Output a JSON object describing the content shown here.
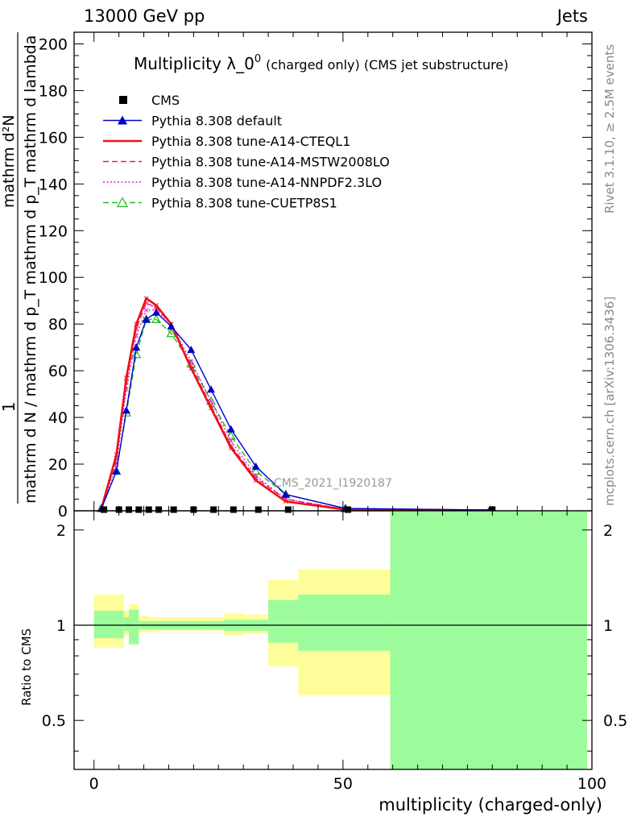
{
  "header": {
    "energy": "13000 GeV pp",
    "category": "Jets",
    "side_rivet": "Rivet 3.1.10, ≥ 2.5M events",
    "side_mcplots": "mcplots.cern.ch [arXiv:1306.3436]",
    "watermark": "CMS_2021_I1920187"
  },
  "chart_data": [
    {
      "type": "line",
      "title_main": "Multiplicity λ_0",
      "title_sup": "0",
      "title_paren": "(charged only) (CMS jet substructure)",
      "xlabel": "multiplicity (charged-only)",
      "ylabel_numerator": "1",
      "ylabel_denominator": "mathrm d N / mathrm d p_T mathrm d p_T mathrm d lambda",
      "ylabel_top": "mathrm d²N",
      "xlim": [
        -4,
        100
      ],
      "ylim": [
        0,
        205
      ],
      "yticks": [
        0,
        20,
        40,
        60,
        80,
        100,
        120,
        140,
        160,
        180,
        200
      ],
      "xticks": [
        0,
        50,
        100
      ],
      "legend_position": "top-left",
      "series": [
        {
          "name": "CMS",
          "style": "data",
          "color": "#000000",
          "x": [
            2,
            5,
            7,
            9,
            11,
            13,
            16,
            20,
            24,
            28,
            33,
            39,
            51,
            80
          ],
          "y": [
            0.5,
            0.5,
            0.5,
            0.5,
            0.5,
            0.5,
            0.5,
            0.5,
            0.5,
            0.5,
            0.5,
            0.5,
            0.5,
            0.5
          ]
        },
        {
          "name": "Pythia 8.308 default",
          "style": "solid-triangle",
          "color": "#0000cc",
          "x": [
            1.5,
            4.5,
            6.5,
            8.5,
            10.5,
            12.5,
            15.5,
            19.5,
            23.5,
            27.5,
            32.5,
            38.5,
            50.5,
            79.5
          ],
          "y": [
            1,
            17,
            43,
            70,
            82,
            85,
            79,
            69,
            52,
            35,
            19,
            7,
            1,
            0.3
          ]
        },
        {
          "name": "Pythia 8.308 tune-A14-CTEQL1",
          "style": "solid-thick",
          "color": "#ee1111",
          "x": [
            1.5,
            4.5,
            6.5,
            8.5,
            10.5,
            12.5,
            15.5,
            19.5,
            23.5,
            27.5,
            32.5,
            38.5,
            50.5,
            79.5
          ],
          "y": [
            1,
            24,
            57,
            80,
            91,
            88,
            80,
            61,
            44,
            27,
            13,
            4,
            0.5,
            0.2
          ]
        },
        {
          "name": "Pythia 8.308 tune-A14-MSTW2008LO",
          "style": "dashed",
          "color": "#ee1188",
          "x": [
            1.5,
            4.5,
            6.5,
            8.5,
            10.5,
            12.5,
            15.5,
            19.5,
            23.5,
            27.5,
            32.5,
            38.5,
            50.5,
            79.5
          ],
          "y": [
            1,
            22,
            55,
            78,
            89,
            87,
            80,
            62,
            45,
            28,
            14,
            5,
            0.6,
            0.2
          ]
        },
        {
          "name": "Pythia 8.308 tune-A14-NNPDF2.3LO",
          "style": "dotted",
          "color": "#dd22cc",
          "x": [
            1.5,
            4.5,
            6.5,
            8.5,
            10.5,
            12.5,
            15.5,
            19.5,
            23.5,
            27.5,
            32.5,
            38.5,
            50.5,
            79.5
          ],
          "y": [
            1,
            20,
            52,
            75,
            86,
            86,
            80,
            64,
            47,
            30,
            15,
            5,
            0.7,
            0.2
          ]
        },
        {
          "name": "Pythia 8.308 tune-CUETP8S1",
          "style": "dashed-open-triangle",
          "color": "#22bb22",
          "x": [
            1.5,
            4.5,
            6.5,
            8.5,
            10.5,
            12.5,
            15.5,
            19.5,
            23.5,
            27.5,
            32.5,
            38.5,
            50.5,
            79.5
          ],
          "y": [
            1,
            17,
            42,
            67,
            82,
            82,
            76,
            63,
            47,
            32,
            17,
            7,
            1,
            0.3
          ]
        }
      ]
    },
    {
      "type": "area",
      "ylabel": "Ratio to CMS",
      "xlim": [
        -4,
        100
      ],
      "ylim": [
        0.35,
        2.3
      ],
      "yticks": [
        0.5,
        1,
        2
      ],
      "ytick_labels": [
        "0.5",
        "1",
        "2"
      ],
      "reference_line": 1,
      "bands": {
        "edges": [
          0,
          4,
          6,
          7,
          9,
          11,
          13,
          16,
          18,
          22,
          26,
          30,
          35,
          41,
          59.5,
          99
        ],
        "inner_color": "#9cfc9c",
        "outer_color": "#fdfd99",
        "inner_low": [
          0.91,
          0.91,
          0.96,
          0.87,
          0.97,
          0.97,
          0.97,
          0.97,
          0.97,
          0.97,
          0.96,
          0.96,
          0.88,
          0.83,
          0.0
        ],
        "inner_high": [
          1.11,
          1.11,
          1.06,
          1.12,
          1.03,
          1.03,
          1.03,
          1.03,
          1.03,
          1.03,
          1.04,
          1.04,
          1.2,
          1.25,
          3.0
        ],
        "outer_low": [
          0.85,
          0.85,
          0.93,
          0.87,
          0.95,
          0.95,
          0.96,
          0.96,
          0.96,
          0.96,
          0.93,
          0.94,
          0.74,
          0.6,
          0.0
        ],
        "outer_high": [
          1.25,
          1.25,
          1.11,
          1.17,
          1.07,
          1.06,
          1.06,
          1.06,
          1.06,
          1.06,
          1.09,
          1.08,
          1.39,
          1.5,
          3.0
        ]
      }
    }
  ]
}
